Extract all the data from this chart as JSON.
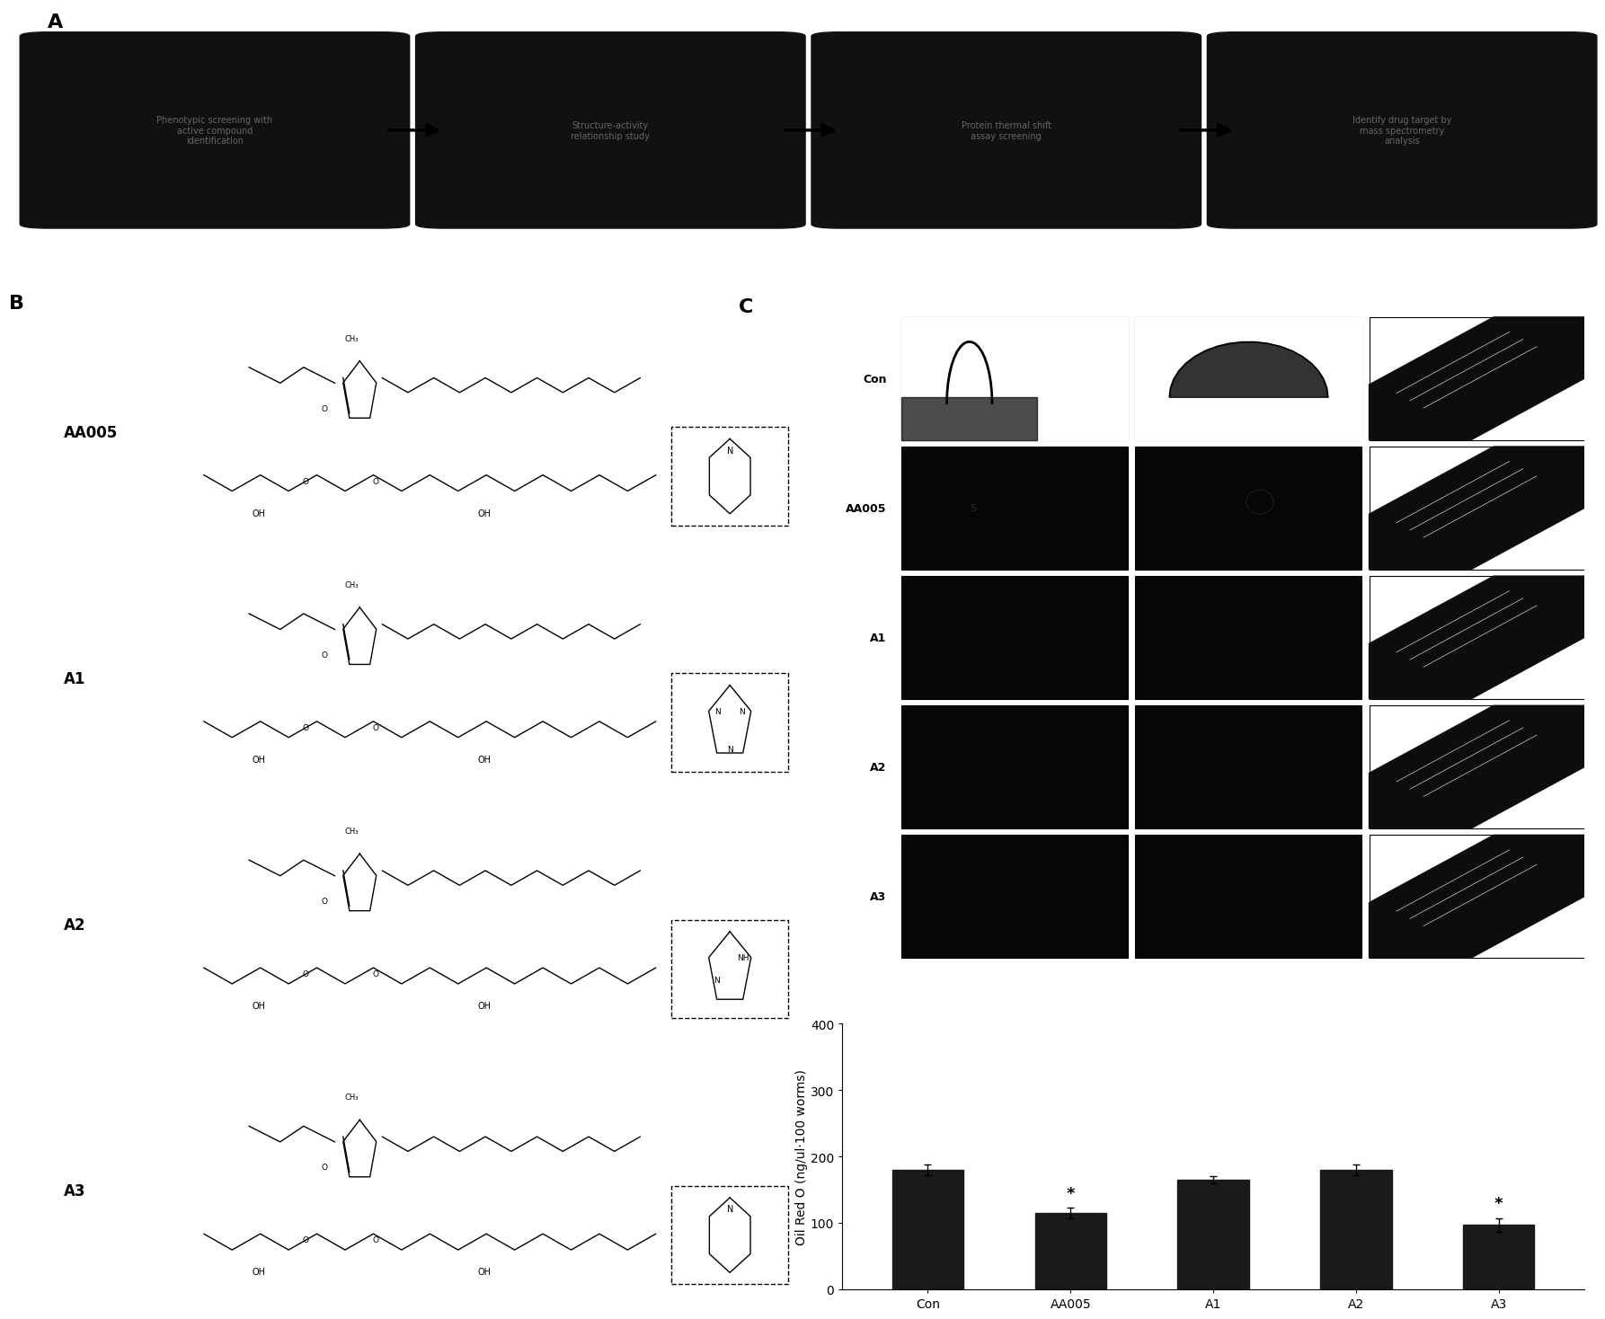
{
  "panel_A_texts": [
    "Phenotypic screening with\nactive compound\nidentification",
    "Structure-activity\nrelationship study",
    "Protein thermal shift\nassay screening",
    "Identify drug target by\nmass spectrometry\nanalysis"
  ],
  "panel_B_labels": [
    "AA005",
    "A1",
    "A2",
    "A3"
  ],
  "panel_C_row_labels": [
    "Con",
    "AA005",
    "A1",
    "A2",
    "A3"
  ],
  "bar_values": [
    180,
    115,
    165,
    180,
    97
  ],
  "bar_errors": [
    8,
    8,
    6,
    8,
    10
  ],
  "bar_color": "#1a1a1a",
  "bar_categories": [
    "Con",
    "AA005",
    "A1",
    "A2",
    "A3"
  ],
  "ylabel": "Oil Red O (ng/ul·100 worms)",
  "ylim": [
    0,
    400
  ],
  "yticks": [
    0,
    100,
    200,
    300,
    400
  ],
  "significant_bars": [
    1,
    4
  ],
  "background_color": "#ffffff",
  "panel_label_fontsize": 16,
  "tick_label_fontsize": 10,
  "axis_label_fontsize": 10
}
